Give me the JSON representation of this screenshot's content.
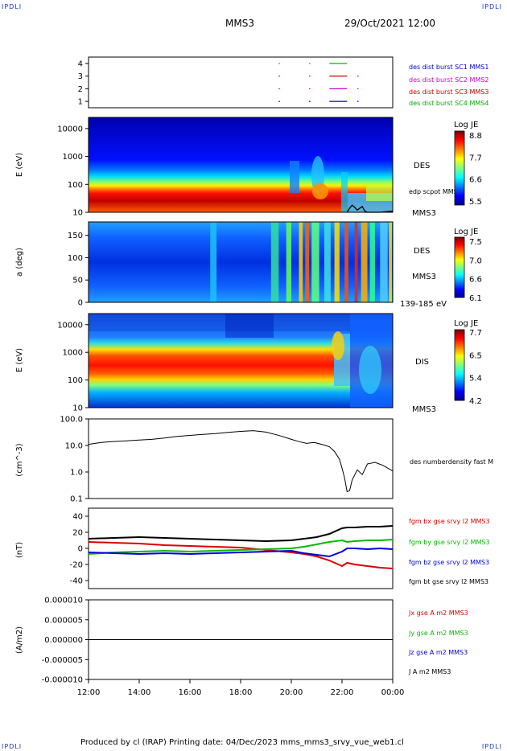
{
  "corners": {
    "tl": "IPDLI",
    "tr": "IPDLI",
    "bl": "IPDLI",
    "br": "IPDLI"
  },
  "header": {
    "spacecraft": "MMS3",
    "datetime": "29/Oct/2021 12:00"
  },
  "footer": {
    "text": "Produced by cl (IRAP)   Printing date: 04/Dec/2023   mms_mms3_srvy_vue_web1.cl"
  },
  "colors": {
    "jet": [
      "#00008f",
      "#0000ff",
      "#007fff",
      "#00ffff",
      "#7fff7f",
      "#ffff00",
      "#ff7f00",
      "#ff0000",
      "#7f0000"
    ],
    "sc1": "#0000cc",
    "sc2": "#cc00cc",
    "sc3": "#cc0000",
    "sc4": "#00bb00"
  },
  "chart_data": [
    {
      "type": "line",
      "panel": "burst",
      "yticks": [
        "1",
        "2",
        "3",
        "4"
      ],
      "ylim": [
        0.5,
        4.5
      ],
      "xticks": [
        "12:00",
        "14:00",
        "16:00",
        "18:00",
        "20:00",
        "22:00",
        "00:00"
      ],
      "xlim_hours": [
        12,
        24
      ],
      "series": [
        {
          "name": "des dist burst SC1 MMS1",
          "level": 1,
          "segments": [
            [
              19.5,
              19.55
            ],
            [
              20.7,
              20.75
            ],
            [
              21.5,
              22.2
            ],
            [
              22.6,
              22.65
            ]
          ]
        },
        {
          "name": "des dist burst SC2 MMS2",
          "level": 2,
          "segments": [
            [
              19.5,
              19.55
            ],
            [
              20.7,
              20.75
            ],
            [
              21.5,
              22.2
            ],
            [
              22.6,
              22.65
            ]
          ]
        },
        {
          "name": "des dist burst SC3 MMS3",
          "level": 3,
          "segments": [
            [
              19.5,
              19.55
            ],
            [
              20.7,
              20.75
            ],
            [
              21.5,
              22.2
            ],
            [
              22.6,
              22.65
            ]
          ]
        },
        {
          "name": "des dist burst SC4 MMS4",
          "level": 4,
          "segments": [
            [
              19.5,
              19.55
            ],
            [
              20.7,
              20.75
            ],
            [
              21.5,
              22.2
            ]
          ]
        }
      ]
    },
    {
      "type": "heatmap",
      "panel": "des_energy",
      "ylabel": "E (eV)",
      "yticks": [
        "10",
        "100",
        "1000",
        "10000"
      ],
      "ylim_log10": [
        1,
        4.4
      ],
      "labels": [
        "DES",
        "edp scpot MMS3",
        "MMS3"
      ],
      "colorbar": {
        "title": "Log JE",
        "ticks": [
          "8.8",
          "7.7",
          "6.6",
          "5.5"
        ],
        "range": [
          5.5,
          8.8
        ]
      },
      "peak_energy_band_log10": [
        1.3,
        1.6
      ],
      "scpot_curve": {
        "hours": [
          22.2,
          22.3,
          22.4,
          22.5,
          22.6,
          22.7,
          22.8,
          22.9,
          23.0,
          23.5,
          24.0
        ],
        "energy_ev": [
          10,
          14,
          18,
          15,
          12,
          14,
          16,
          11,
          10,
          10,
          11
        ]
      }
    },
    {
      "type": "heatmap",
      "panel": "des_pitch",
      "ylabel": "a (deg)",
      "yticks": [
        "0",
        "50",
        "100",
        "150"
      ],
      "ylim": [
        0,
        180
      ],
      "labels": [
        "DES",
        "MMS3",
        "139-185 eV"
      ],
      "colorbar": {
        "title": "Log JE",
        "ticks": [
          "7.5",
          "7.0",
          "6.6",
          "6.1"
        ],
        "range": [
          6.1,
          7.5
        ]
      }
    },
    {
      "type": "heatmap",
      "panel": "dis_energy",
      "ylabel": "E (eV)",
      "yticks": [
        "10",
        "100",
        "1000",
        "10000"
      ],
      "ylim_log10": [
        1,
        4.4
      ],
      "labels": [
        "DIS",
        "MMS3"
      ],
      "colorbar": {
        "title": "Log JE",
        "ticks": [
          "7.7",
          "6.5",
          "5.4",
          "4.2"
        ],
        "range": [
          4.2,
          7.7
        ]
      },
      "peak_energy_band_log10": [
        2.3,
        3.0
      ]
    },
    {
      "type": "line",
      "panel": "density",
      "ylabel": "(cm^-3)",
      "yticks": [
        "0.1",
        "1.0",
        "10.0",
        "100.0"
      ],
      "ylim_log10": [
        -1,
        2
      ],
      "series": [
        {
          "name": "des numberdensity fast M",
          "x_hours": [
            12.0,
            12.5,
            13,
            13.5,
            14,
            14.5,
            15,
            15.5,
            16,
            16.5,
            17,
            17.5,
            18,
            18.5,
            19,
            19.5,
            20,
            20.3,
            20.6,
            20.9,
            21.2,
            21.5,
            21.7,
            21.9,
            22.0,
            22.1,
            22.2,
            22.3,
            22.4,
            22.6,
            22.8,
            23.0,
            23.3,
            23.6,
            24.0
          ],
          "y": [
            11,
            13,
            14,
            15,
            16,
            17,
            19,
            22,
            24,
            26,
            28,
            31,
            34,
            36,
            32,
            24,
            17,
            14,
            12,
            13,
            11,
            9,
            6,
            3,
            1.4,
            0.6,
            0.18,
            0.2,
            0.5,
            1.2,
            0.8,
            2,
            2.3,
            1.8,
            1.1
          ]
        }
      ]
    },
    {
      "type": "line",
      "panel": "fgm",
      "ylabel": "(nT)",
      "yticks": [
        "-40",
        "-20",
        "0",
        "20",
        "40"
      ],
      "ylim": [
        -50,
        50
      ],
      "series": [
        {
          "name": "fgm bx gse srvy l2 MMS3",
          "x_hours": [
            12,
            13,
            14,
            15,
            16,
            17,
            18,
            19,
            20,
            20.5,
            21,
            21.5,
            22,
            22.2,
            22.5,
            23,
            23.5,
            24
          ],
          "y": [
            8,
            7,
            6,
            4,
            3,
            2,
            1,
            -2,
            -5,
            -7,
            -10,
            -15,
            -22,
            -18,
            -20,
            -22,
            -24,
            -25
          ]
        },
        {
          "name": "fgm by gse srvy l2 MMS3",
          "x_hours": [
            12,
            13,
            14,
            15,
            16,
            17,
            18,
            19,
            20,
            20.5,
            21,
            21.5,
            22,
            22.2,
            22.5,
            23,
            23.5,
            24
          ],
          "y": [
            -7,
            -5,
            -4,
            -3,
            -4,
            -3,
            -2,
            -1,
            0,
            2,
            5,
            8,
            10,
            8,
            9,
            10,
            10,
            11
          ]
        },
        {
          "name": "fgm bz gse srvy l2 MMS3",
          "x_hours": [
            12,
            13,
            14,
            15,
            16,
            17,
            18,
            19,
            20,
            20.5,
            21,
            21.5,
            22,
            22.2,
            22.5,
            23,
            23.5,
            24
          ],
          "y": [
            -5,
            -6,
            -7,
            -6,
            -7,
            -6,
            -5,
            -4,
            -3,
            -6,
            -8,
            -10,
            -4,
            0,
            0,
            -1,
            0,
            -1
          ]
        },
        {
          "name": "fgm bt gse srvy l2 MMS3",
          "x_hours": [
            12,
            13,
            14,
            15,
            16,
            17,
            18,
            19,
            20,
            20.5,
            21,
            21.5,
            22,
            22.2,
            22.5,
            23,
            23.5,
            24
          ],
          "y": [
            12,
            13,
            14,
            13,
            12,
            11,
            10,
            9,
            10,
            12,
            14,
            18,
            25,
            26,
            26,
            27,
            27,
            28
          ]
        }
      ]
    },
    {
      "type": "line",
      "panel": "current",
      "ylabel": "(A/m2)",
      "yticks": [
        "-0.000010",
        "-0.000005",
        "0.000000",
        "0.000005",
        "0.000010"
      ],
      "ylim": [
        -1e-05,
        1e-05
      ],
      "series": [
        {
          "name": "Jx gse A m2 MMS3",
          "x_hours": [
            12,
            24
          ],
          "y": [
            0,
            0
          ]
        },
        {
          "name": "Jy gse A m2 MMS3",
          "x_hours": [
            12,
            24
          ],
          "y": [
            0,
            0
          ]
        },
        {
          "name": "Jz gse A m2 MMS3",
          "x_hours": [
            12,
            24
          ],
          "y": [
            0,
            0
          ]
        },
        {
          "name": "J A m2 MMS3",
          "x_hours": [
            12,
            24
          ],
          "y": [
            0,
            0
          ]
        }
      ]
    }
  ]
}
